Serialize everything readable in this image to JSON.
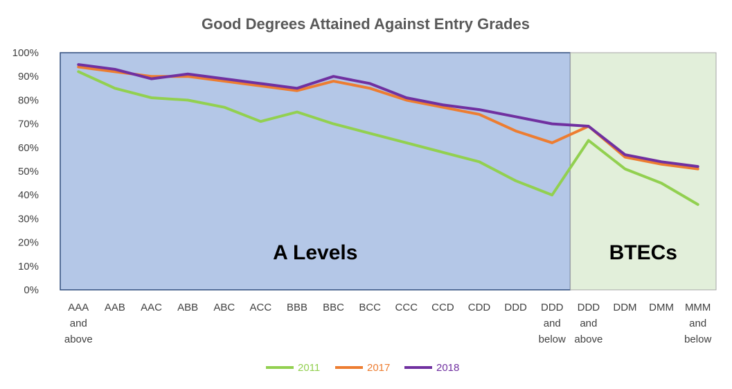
{
  "chart_data": {
    "type": "line",
    "title": "Good Degrees Attained Against Entry Grades",
    "categories": [
      [
        "AAA",
        "and",
        "above"
      ],
      [
        "AAB"
      ],
      [
        "AAC"
      ],
      [
        "ABB"
      ],
      [
        "ABC"
      ],
      [
        "ACC"
      ],
      [
        "BBB"
      ],
      [
        "BBC"
      ],
      [
        "BCC"
      ],
      [
        "CCC"
      ],
      [
        "CCD"
      ],
      [
        "CDD"
      ],
      [
        "DDD"
      ],
      [
        "DDD",
        "and",
        "below"
      ],
      [
        "DDD",
        "and",
        "above"
      ],
      [
        "DDM"
      ],
      [
        "DMM"
      ],
      [
        "MMM",
        "and",
        "below"
      ]
    ],
    "y_ticks": [
      "0%",
      "10%",
      "20%",
      "30%",
      "40%",
      "50%",
      "60%",
      "70%",
      "80%",
      "90%",
      "100%"
    ],
    "ylim": [
      0,
      100
    ],
    "y_unit": "percent",
    "grid": false,
    "legend_position": "bottom",
    "regions": [
      {
        "label": "A Levels",
        "start": 0,
        "end": 13,
        "color": "#b4c7e7"
      },
      {
        "label": "BTECs",
        "start": 14,
        "end": 17,
        "color": "#e2efda"
      }
    ],
    "series": [
      {
        "name": "2011",
        "color": "#92d050",
        "values": [
          92,
          85,
          81,
          80,
          77,
          71,
          75,
          70,
          66,
          62,
          58,
          54,
          46,
          40,
          63,
          51,
          45,
          36
        ]
      },
      {
        "name": "2017",
        "color": "#ed7d31",
        "values": [
          94,
          92,
          90,
          90,
          88,
          86,
          84,
          88,
          85,
          80,
          77,
          74,
          67,
          62,
          69,
          56,
          53,
          51
        ]
      },
      {
        "name": "2018",
        "color": "#7030a0",
        "values": [
          95,
          93,
          89,
          91,
          89,
          87,
          85,
          90,
          87,
          81,
          78,
          76,
          73,
          70,
          69,
          57,
          54,
          52
        ]
      }
    ]
  }
}
